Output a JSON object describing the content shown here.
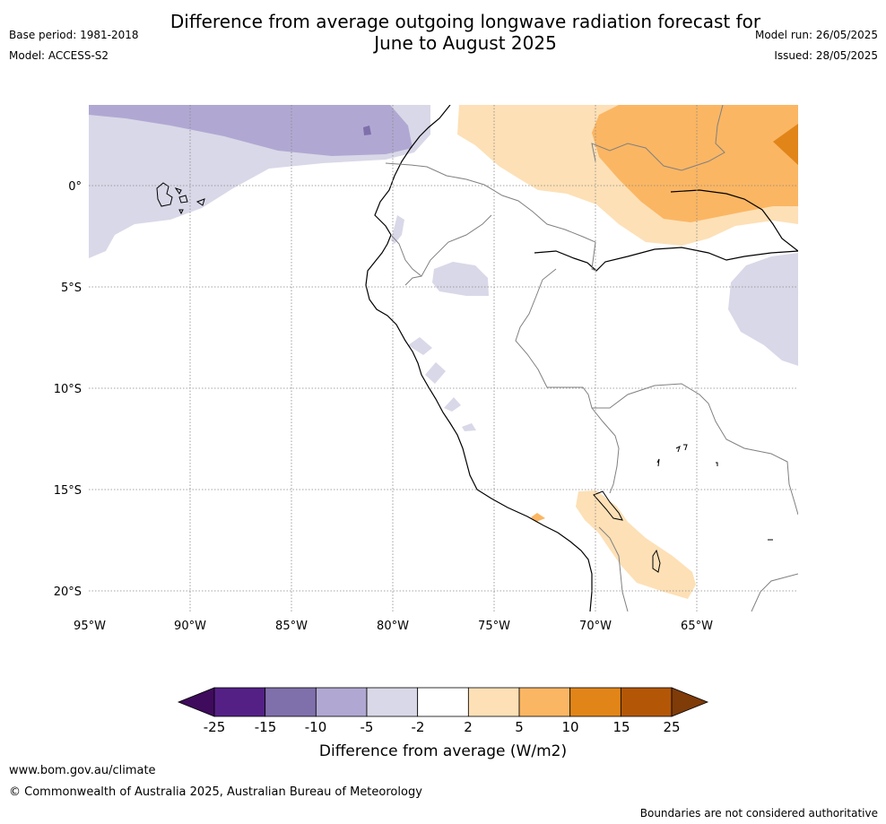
{
  "header": {
    "title_line1": "Difference from average outgoing longwave radiation forecast for",
    "title_line2": "June to August 2025",
    "base_period": "Base period: 1981-2018",
    "model": "Model: ACCESS-S2",
    "model_run": "Model run: 26/05/2025",
    "issued": "Issued: 28/05/2025"
  },
  "map": {
    "lat_labels": [
      "0°",
      "5°S",
      "10°S",
      "15°S",
      "20°S"
    ],
    "lon_labels": [
      "95°W",
      "90°W",
      "85°W",
      "80°W",
      "75°W",
      "70°W",
      "65°W"
    ]
  },
  "colorbar": {
    "title": "Difference from average (W/m2)",
    "tick_labels": [
      "-25",
      "-15",
      "-10",
      "-5",
      "-2",
      "2",
      "5",
      "10",
      "15",
      "25"
    ],
    "colors": [
      "#3f0b5d",
      "#542086",
      "#7f6fab",
      "#b0a8d2",
      "#d9d8e8",
      "#ffffff",
      "#fde0b6",
      "#fbb663",
      "#e18519",
      "#b35707",
      "#7f3b08"
    ]
  },
  "footer": {
    "url": "www.bom.gov.au/climate",
    "copyright": "© Commonwealth of Australia 2025, Australian Bureau of Meteorology",
    "note": "Boundaries are not considered authoritative"
  }
}
